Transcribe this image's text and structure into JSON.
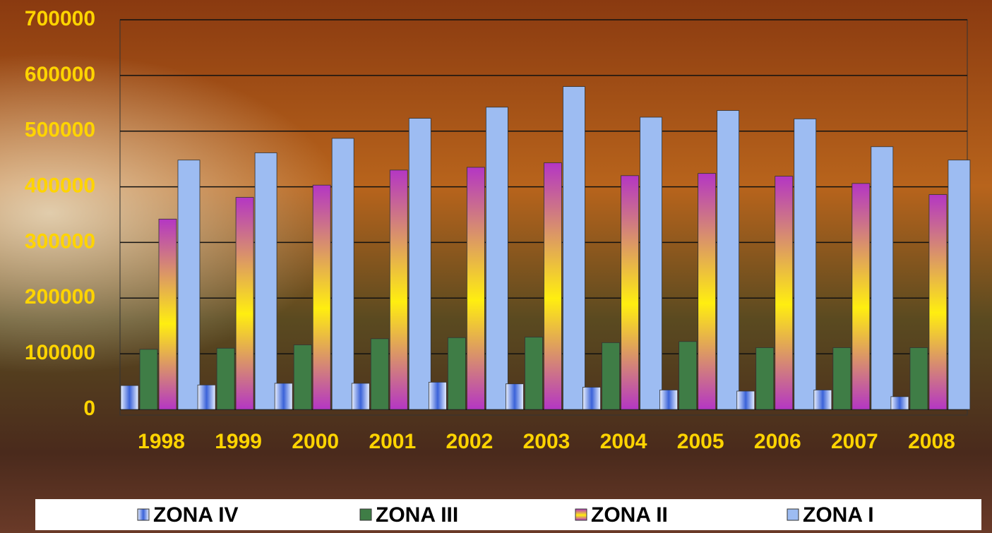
{
  "chart_data": {
    "type": "bar",
    "categories": [
      "1998",
      "1999",
      "2000",
      "2001",
      "2002",
      "2003",
      "2004",
      "2005",
      "2006",
      "2007",
      "2008"
    ],
    "series": [
      {
        "name": "ZONA IV",
        "color": "#3a62d8",
        "values": [
          43000,
          44000,
          47000,
          47000,
          49000,
          46000,
          40000,
          35000,
          33000,
          35000,
          23000
        ]
      },
      {
        "name": "ZONA III",
        "color": "#3f7d46",
        "values": [
          108000,
          110000,
          116000,
          127000,
          129000,
          130000,
          120000,
          122000,
          111000,
          111000,
          111000
        ]
      },
      {
        "name": "ZONA II",
        "color": "#b436c4",
        "values": [
          342000,
          381000,
          403000,
          430000,
          435000,
          443000,
          420000,
          424000,
          419000,
          406000,
          386000
        ]
      },
      {
        "name": "ZONA I",
        "color": "#9dbcf2",
        "values": [
          448000,
          461000,
          487000,
          523000,
          543000,
          580000,
          525000,
          537000,
          522000,
          472000,
          448000
        ]
      }
    ],
    "ylim": [
      0,
      700000
    ],
    "yticks": [
      0,
      100000,
      200000,
      300000,
      400000,
      500000,
      600000,
      700000
    ],
    "grid": true
  }
}
